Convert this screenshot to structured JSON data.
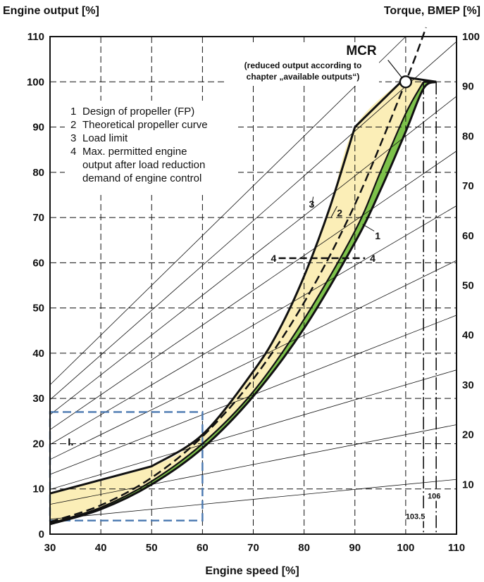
{
  "chart_data": {
    "type": "line",
    "ylabel_left": "Engine output [%]",
    "ylabel_right": "Torque, BMEP [%]",
    "xlabel": "Engine speed [%]",
    "xlim": [
      30,
      110
    ],
    "ylim_left": [
      0,
      110
    ],
    "ylim_right": [
      0,
      100
    ],
    "x_ticks": [
      "30",
      "40",
      "50",
      "60",
      "70",
      "80",
      "90",
      "100",
      "110"
    ],
    "y_ticks_left": [
      "0",
      "10",
      "20",
      "30",
      "40",
      "50",
      "60",
      "70",
      "80",
      "90",
      "100",
      "110"
    ],
    "y_ticks_right": [
      "10",
      "20",
      "30",
      "40",
      "50",
      "60",
      "70",
      "80",
      "90",
      "100"
    ],
    "grid": true,
    "legend": {
      "placement": "top-left",
      "items": [
        {
          "key": "1",
          "text": "Design of propeller (FP)"
        },
        {
          "key": "2",
          "text": "Theoretical propeller curve"
        },
        {
          "key": "3",
          "text": "Load limit"
        },
        {
          "key": "4",
          "text": "Max. permitted engine"
        },
        {
          "key": "",
          "text": "output after load reduction"
        },
        {
          "key": "",
          "text": "demand of engine control"
        }
      ]
    },
    "mcr": {
      "label": "MCR",
      "note_line1": "(reduced output according  to",
      "note_line2": "chapter „available outputs“)",
      "x": 100,
      "y": 100
    },
    "region_label": "I.",
    "region_box": {
      "x": [
        30,
        60
      ],
      "y": [
        3,
        27
      ]
    },
    "vertical_markers": [
      {
        "x": 103.5,
        "label": "103.5"
      },
      {
        "x": 106,
        "label": "106"
      }
    ],
    "constant_torque_lines_torque_percent": [
      10,
      20,
      30,
      40,
      50,
      60,
      70,
      80,
      90,
      100
    ],
    "series": [
      {
        "name": "1",
        "points": [
          [
            30,
            2.2
          ],
          [
            40,
            5.5
          ],
          [
            50,
            11
          ],
          [
            60,
            19
          ],
          [
            70,
            30.5
          ],
          [
            80,
            45.5
          ],
          [
            90,
            64.5
          ],
          [
            95,
            76
          ],
          [
            100,
            89
          ],
          [
            103.5,
            98.5
          ],
          [
            106,
            100
          ]
        ]
      },
      {
        "name": "1b",
        "points": [
          [
            30,
            2.4
          ],
          [
            40,
            5.9
          ],
          [
            50,
            11.7
          ],
          [
            60,
            20
          ],
          [
            70,
            31.5
          ],
          [
            80,
            47.5
          ],
          [
            90,
            67
          ],
          [
            95,
            80
          ],
          [
            100,
            93
          ],
          [
            103.5,
            100
          ]
        ]
      },
      {
        "name": "2",
        "points": [
          [
            30,
            2.7
          ],
          [
            40,
            6.4
          ],
          [
            50,
            12.5
          ],
          [
            60,
            21.6
          ],
          [
            70,
            34.3
          ],
          [
            80,
            51.2
          ],
          [
            90,
            72.9
          ],
          [
            100,
            100
          ],
          [
            104,
            112
          ]
        ]
      },
      {
        "name": "3",
        "points": [
          [
            30,
            9
          ],
          [
            50,
            15
          ],
          [
            60,
            22
          ],
          [
            70,
            36
          ],
          [
            75,
            45
          ],
          [
            80,
            57
          ],
          [
            85,
            72
          ],
          [
            90,
            90
          ],
          [
            100,
            101
          ],
          [
            103.5,
            100
          ],
          [
            106,
            100
          ]
        ]
      },
      {
        "name": "4",
        "points": [
          [
            75,
            61
          ],
          [
            92,
            61
          ]
        ]
      }
    ],
    "shaded_regions": [
      {
        "name": "load-limit-area",
        "color": "#fbeeb7"
      },
      {
        "name": "propeller-design-area",
        "color": "#7cc14a"
      }
    ],
    "curve_labels": [
      {
        "text": "1",
        "x": 94.5,
        "y": 66
      },
      {
        "text": "2",
        "x": 87,
        "y": 71
      },
      {
        "text": "3",
        "x": 81.5,
        "y": 73
      },
      {
        "text": "4",
        "x": 74,
        "y": 61
      },
      {
        "text": "4",
        "x": 93.5,
        "y": 61
      }
    ],
    "colors": {
      "yellow_fill": "#fbeeb7",
      "green_fill": "#7cc14a",
      "box_blue": "#4a78b0",
      "curve": "#111111"
    }
  }
}
